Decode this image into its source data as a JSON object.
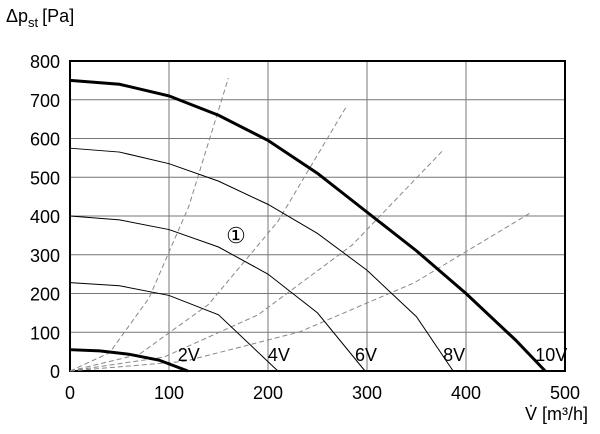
{
  "chart_data": {
    "type": "line",
    "y_label": {
      "main": "Δp",
      "sub": "st",
      "unit": "[Pa]"
    },
    "x_label": "V̇ [m³/h]",
    "annotation": "①",
    "xlim": [
      0,
      500
    ],
    "xticks": [
      0,
      100,
      200,
      300,
      400,
      500
    ],
    "ylim": [
      0,
      800
    ],
    "yticks": [
      0,
      100,
      200,
      300,
      400,
      500,
      600,
      700,
      800
    ],
    "grid": true,
    "series": [
      {
        "name": "2V",
        "color": "#000000",
        "width": 3,
        "x": [
          0,
          30,
          60,
          90,
          119
        ],
        "values": [
          55,
          52,
          43,
          28,
          0
        ]
      },
      {
        "name": "4V",
        "color": "#000000",
        "width": 1,
        "x": [
          0,
          50,
          100,
          150,
          210
        ],
        "values": [
          228,
          220,
          195,
          145,
          0
        ]
      },
      {
        "name": "6V",
        "color": "#000000",
        "width": 1,
        "x": [
          0,
          50,
          100,
          150,
          200,
          250,
          298
        ],
        "values": [
          400,
          390,
          365,
          320,
          250,
          150,
          0
        ]
      },
      {
        "name": "8V",
        "color": "#000000",
        "width": 1,
        "x": [
          0,
          50,
          100,
          150,
          200,
          250,
          300,
          350,
          387
        ],
        "values": [
          575,
          565,
          535,
          490,
          430,
          355,
          260,
          140,
          0
        ]
      },
      {
        "name": "10V",
        "color": "#000000",
        "width": 3,
        "x": [
          0,
          50,
          100,
          150,
          200,
          250,
          300,
          350,
          400,
          450,
          480
        ],
        "values": [
          750,
          740,
          710,
          660,
          595,
          510,
          410,
          310,
          200,
          80,
          0
        ]
      }
    ],
    "system_curves": [
      {
        "color": "#888888",
        "x": [
          0,
          40,
          80,
          120,
          160
        ],
        "values": [
          0,
          47,
          189,
          425,
          756
        ]
      },
      {
        "color": "#888888",
        "x": [
          0,
          70,
          140,
          210,
          280
        ],
        "values": [
          0,
          43,
          172,
          386,
          686
        ]
      },
      {
        "color": "#888888",
        "x": [
          0,
          95,
          190,
          285,
          377
        ],
        "values": [
          0,
          36,
          145,
          325,
          570
        ]
      },
      {
        "color": "#888888",
        "x": [
          0,
          116,
          232,
          348,
          465
        ],
        "values": [
          0,
          25,
          101,
          228,
          408
        ]
      }
    ]
  }
}
